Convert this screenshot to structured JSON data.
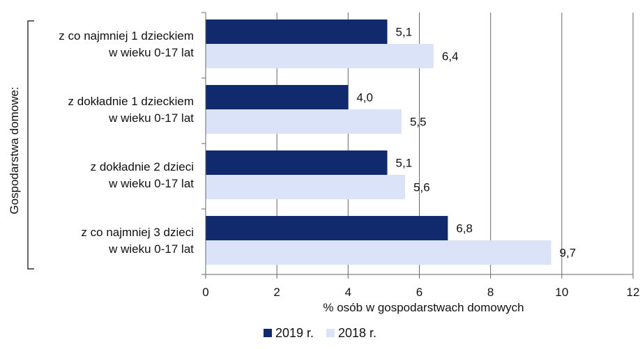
{
  "chart_data": {
    "type": "bar",
    "orientation": "horizontal",
    "categories": [
      [
        "z co najmniej 1 dzieckiem",
        "w wieku 0-17 lat"
      ],
      [
        "z dokładnie 1 dzieckiem",
        "w wieku 0-17 lat"
      ],
      [
        "z dokładnie 2 dzieci",
        "w wieku 0-17 lat"
      ],
      [
        "z co najmniej 3 dzieci",
        "w wieku 0-17 lat"
      ]
    ],
    "series": [
      {
        "name": "2019 r.",
        "color": "#112a6e",
        "values": [
          5.1,
          4.0,
          5.1,
          6.8
        ],
        "labels": [
          "5,1",
          "4,0",
          "5,1",
          "6,8"
        ]
      },
      {
        "name": "2018 r.",
        "color": "#dbe3f8",
        "values": [
          6.4,
          5.5,
          5.6,
          9.7
        ],
        "labels": [
          "6,4",
          "5,5",
          "5,6",
          "9,7"
        ]
      }
    ],
    "xlabel": "% osób w gospodarstwach domowych",
    "ylabel": "Gospodarstwa domowe:",
    "xlim": [
      0,
      12
    ],
    "xticks": [
      0,
      2,
      4,
      6,
      8,
      10,
      12
    ],
    "grid": true,
    "legend_position": "bottom"
  }
}
